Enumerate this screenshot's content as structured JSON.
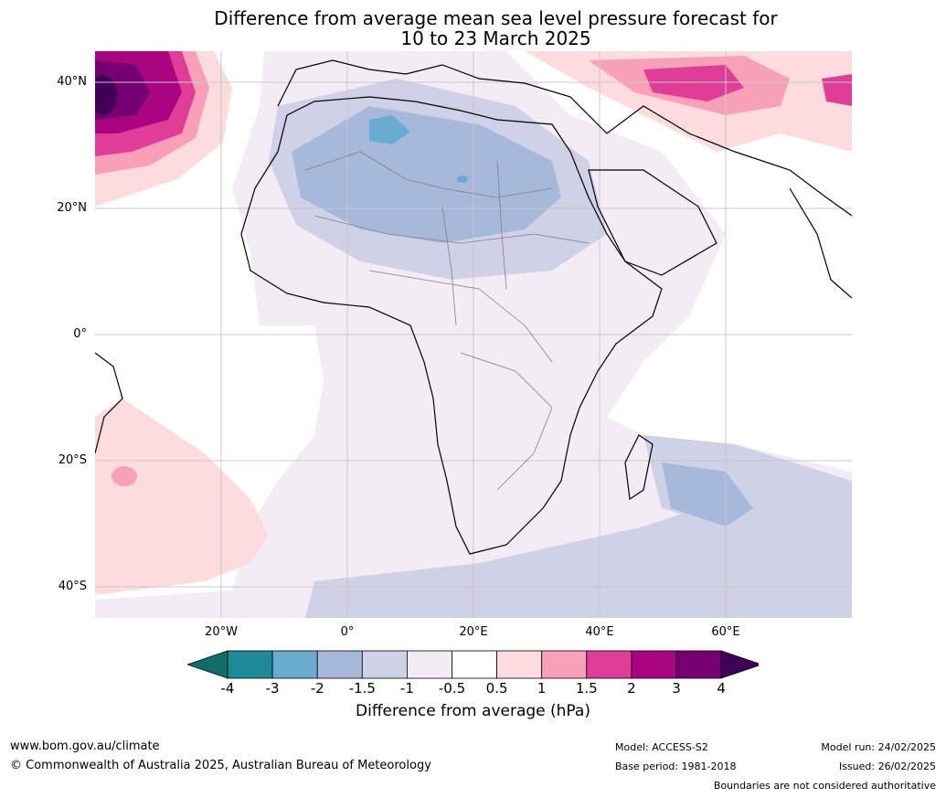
{
  "title": {
    "line1": "Difference from average mean sea level pressure forecast for",
    "line2": "10 to 23 March 2025"
  },
  "map": {
    "region": "Africa and Middle East",
    "lat_labels": [
      "40°N",
      "20°N",
      "0°",
      "20°S",
      "40°S"
    ],
    "lon_labels": [
      "20°W",
      "0°",
      "20°E",
      "40°E",
      "60°E"
    ]
  },
  "colorbar": {
    "title": "Difference from average (hPa)",
    "ticks": [
      "-4",
      "-3",
      "-2",
      "-1.5",
      "-1",
      "-0.5",
      "0.5",
      "1",
      "1.5",
      "2",
      "3",
      "4"
    ],
    "colors": [
      "#0e6e6a",
      "#1c8b97",
      "#6aabd1",
      "#a6b9da",
      "#cfd1e6",
      "#f3ecf5",
      "#ffffff",
      "#fddcde",
      "#f9a0b9",
      "#df3d97",
      "#aa0581",
      "#760072",
      "#3f0055"
    ]
  },
  "footer": {
    "website": "www.bom.gov.au/climate",
    "copyright": "© Commonwealth of Australia 2025, Australian Bureau of Meteorology",
    "model": "Model: ACCESS-S2",
    "base_period": "Base period: 1981-2018",
    "model_run": "Model run: 24/02/2025",
    "issued": "Issued: 26/02/2025",
    "disclaimer": "Boundaries are not considered authoritative"
  }
}
